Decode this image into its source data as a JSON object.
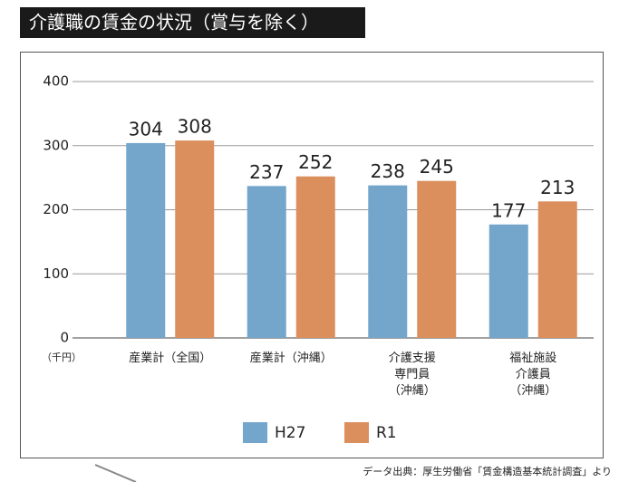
{
  "chart_data": {
    "type": "bar",
    "title": "介護職の賃金の状況（賞与を除く）",
    "y_unit_label": "（千円）",
    "categories": [
      "産業計（全国）",
      "産業計（沖縄）",
      "介護支援\n専門員\n（沖縄）",
      "福祉施設\n介護員\n（沖縄）"
    ],
    "series": [
      {
        "name": "H27",
        "color": "#74a5cb",
        "values": [
          304,
          237,
          238,
          177
        ]
      },
      {
        "name": "R1",
        "color": "#db8f5d",
        "values": [
          308,
          252,
          245,
          213
        ]
      }
    ],
    "ylim": [
      0,
      400
    ],
    "yticks": [
      0,
      100,
      200,
      300,
      400
    ],
    "grid": true,
    "source": "データ出典：厚生労働省「賃金構造基本統計調査」より"
  }
}
